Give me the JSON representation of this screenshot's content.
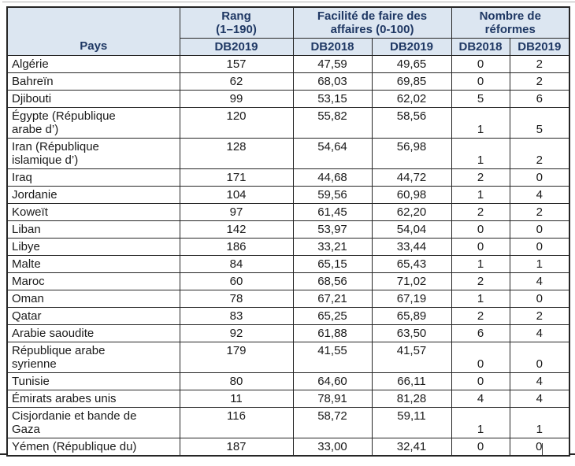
{
  "page": {
    "background": "#ffffff",
    "top_rule_color": "#b0b0b0",
    "table_border_color": "#262626",
    "header_bg_color": "#dce6f1",
    "header_text_color": "#1f3864"
  },
  "table": {
    "header": {
      "pays": "Pays",
      "rang": "Rang\n(1–190)",
      "facilite": "Facilité de faire des\naffaires (0-100)",
      "reformes": "Nombre de\nréformes",
      "sub": [
        "DB2019",
        "DB2018",
        "DB2019",
        "DB2018",
        "DB2019"
      ]
    },
    "rows": [
      {
        "pays": "Algérie",
        "rang": "157",
        "fac2018": "47,59",
        "fac2019": "49,65",
        "ref2018": "0",
        "ref2019": "2"
      },
      {
        "pays": "Bahreïn",
        "rang": "62",
        "fac2018": "68,03",
        "fac2019": "69,85",
        "ref2018": "0",
        "ref2019": "2"
      },
      {
        "pays": "Djibouti",
        "rang": "99",
        "fac2018": "53,15",
        "fac2019": "62,02",
        "ref2018": "5",
        "ref2019": "6"
      },
      {
        "pays": "Égypte (République\narabe d’)",
        "rang": "120",
        "fac2018": "55,82",
        "fac2019": "58,56",
        "ref2018": "1",
        "ref2019": "5"
      },
      {
        "pays": "Iran (République\nislamique d’)",
        "rang": "128",
        "fac2018": "54,64",
        "fac2019": "56,98",
        "ref2018": "1",
        "ref2019": "2"
      },
      {
        "pays": "Iraq",
        "rang": "171",
        "fac2018": "44,68",
        "fac2019": "44,72",
        "ref2018": "2",
        "ref2019": "0"
      },
      {
        "pays": "Jordanie",
        "rang": "104",
        "fac2018": "59,56",
        "fac2019": "60,98",
        "ref2018": "1",
        "ref2019": "4"
      },
      {
        "pays": "Koweït",
        "rang": "97",
        "fac2018": "61,45",
        "fac2019": "62,20",
        "ref2018": "2",
        "ref2019": "2"
      },
      {
        "pays": "Liban",
        "rang": "142",
        "fac2018": "53,97",
        "fac2019": "54,04",
        "ref2018": "0",
        "ref2019": "0"
      },
      {
        "pays": "Libye",
        "rang": "186",
        "fac2018": "33,21",
        "fac2019": "33,44",
        "ref2018": "0",
        "ref2019": "0"
      },
      {
        "pays": "Malte",
        "rang": "84",
        "fac2018": "65,15",
        "fac2019": "65,43",
        "ref2018": "1",
        "ref2019": "1"
      },
      {
        "pays": "Maroc",
        "rang": "60",
        "fac2018": "68,56",
        "fac2019": "71,02",
        "ref2018": "2",
        "ref2019": "4"
      },
      {
        "pays": "Oman",
        "rang": "78",
        "fac2018": "67,21",
        "fac2019": "67,19",
        "ref2018": "1",
        "ref2019": "0"
      },
      {
        "pays": "Qatar",
        "rang": "83",
        "fac2018": "65,25",
        "fac2019": "65,89",
        "ref2018": "2",
        "ref2019": "2"
      },
      {
        "pays": "Arabie saoudite",
        "rang": "92",
        "fac2018": "61,88",
        "fac2019": "63,50",
        "ref2018": "6",
        "ref2019": "4"
      },
      {
        "pays": "République arabe\nsyrienne",
        "rang": "179",
        "fac2018": "41,55",
        "fac2019": "41,57",
        "ref2018": "0",
        "ref2019": "0"
      },
      {
        "pays": "Tunisie",
        "rang": "80",
        "fac2018": "64,60",
        "fac2019": "66,11",
        "ref2018": "0",
        "ref2019": "4"
      },
      {
        "pays": "Émirats arabes unis",
        "rang": "11",
        "fac2018": "78,91",
        "fac2019": "81,28",
        "ref2018": "4",
        "ref2019": "4"
      },
      {
        "pays": "Cisjordanie et bande de\nGaza",
        "rang": "116",
        "fac2018": "58,72",
        "fac2019": "59,11",
        "ref2018": "1",
        "ref2019": "1"
      },
      {
        "pays": "Yémen (République du)",
        "rang": "187",
        "fac2018": "33,00",
        "fac2019": "32,41",
        "ref2018": "0",
        "ref2019": "0",
        "caret": true
      }
    ]
  }
}
